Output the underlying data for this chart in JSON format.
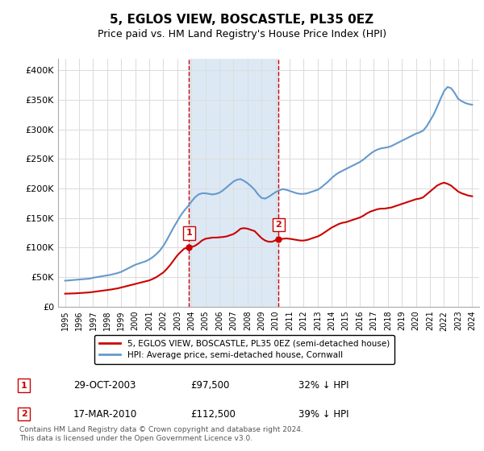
{
  "title": "5, EGLOS VIEW, BOSCASTLE, PL35 0EZ",
  "subtitle": "Price paid vs. HM Land Registry's House Price Index (HPI)",
  "red_label": "5, EGLOS VIEW, BOSCASTLE, PL35 0EZ (semi-detached house)",
  "blue_label": "HPI: Average price, semi-detached house, Cornwall",
  "footer": "Contains HM Land Registry data © Crown copyright and database right 2024.\nThis data is licensed under the Open Government Licence v3.0.",
  "purchases": [
    {
      "num": 1,
      "date": "29-OCT-2003",
      "price": "£97,500",
      "pct": "32% ↓ HPI",
      "x": 2003.83
    },
    {
      "num": 2,
      "date": "17-MAR-2010",
      "price": "£112,500",
      "pct": "39% ↓ HPI",
      "x": 2010.21
    }
  ],
  "shade_color": "#dce9f5",
  "red_color": "#cc0000",
  "blue_color": "#6699cc",
  "vline_color": "#cc0000",
  "background_color": "#ffffff",
  "grid_color": "#dddddd",
  "ylim": [
    0,
    420000
  ],
  "xlim": [
    1994.5,
    2024.5
  ],
  "yticks": [
    0,
    50000,
    100000,
    150000,
    200000,
    250000,
    300000,
    350000,
    400000
  ],
  "ytick_labels": [
    "£0",
    "£50K",
    "£100K",
    "£150K",
    "£200K",
    "£250K",
    "£300K",
    "£350K",
    "£400K"
  ],
  "hpi_data": {
    "years": [
      1995.0,
      1995.25,
      1995.5,
      1995.75,
      1996.0,
      1996.25,
      1996.5,
      1996.75,
      1997.0,
      1997.25,
      1997.5,
      1997.75,
      1998.0,
      1998.25,
      1998.5,
      1998.75,
      1999.0,
      1999.25,
      1999.5,
      1999.75,
      2000.0,
      2000.25,
      2000.5,
      2000.75,
      2001.0,
      2001.25,
      2001.5,
      2001.75,
      2002.0,
      2002.25,
      2002.5,
      2002.75,
      2003.0,
      2003.25,
      2003.5,
      2003.75,
      2004.0,
      2004.25,
      2004.5,
      2004.75,
      2005.0,
      2005.25,
      2005.5,
      2005.75,
      2006.0,
      2006.25,
      2006.5,
      2006.75,
      2007.0,
      2007.25,
      2007.5,
      2007.75,
      2008.0,
      2008.25,
      2008.5,
      2008.75,
      2009.0,
      2009.25,
      2009.5,
      2009.75,
      2010.0,
      2010.25,
      2010.5,
      2010.75,
      2011.0,
      2011.25,
      2011.5,
      2011.75,
      2012.0,
      2012.25,
      2012.5,
      2012.75,
      2013.0,
      2013.25,
      2013.5,
      2013.75,
      2014.0,
      2014.25,
      2014.5,
      2014.75,
      2015.0,
      2015.25,
      2015.5,
      2015.75,
      2016.0,
      2016.25,
      2016.5,
      2016.75,
      2017.0,
      2017.25,
      2017.5,
      2017.75,
      2018.0,
      2018.25,
      2018.5,
      2018.75,
      2019.0,
      2019.25,
      2019.5,
      2019.75,
      2020.0,
      2020.25,
      2020.5,
      2020.75,
      2021.0,
      2021.25,
      2021.5,
      2021.75,
      2022.0,
      2022.25,
      2022.5,
      2022.75,
      2023.0,
      2023.25,
      2023.5,
      2023.75,
      2024.0
    ],
    "values": [
      44000,
      44500,
      45000,
      45500,
      46000,
      46500,
      47000,
      47500,
      49000,
      50000,
      51000,
      52000,
      53000,
      54000,
      55500,
      57000,
      59000,
      62000,
      65000,
      68000,
      71000,
      73000,
      75000,
      77000,
      80000,
      84000,
      89000,
      95000,
      103000,
      113000,
      124000,
      135000,
      145000,
      155000,
      163000,
      170000,
      178000,
      185000,
      190000,
      192000,
      192000,
      191000,
      190000,
      191000,
      193000,
      197000,
      202000,
      207000,
      212000,
      215000,
      216000,
      213000,
      209000,
      204000,
      198000,
      190000,
      184000,
      183000,
      186000,
      190000,
      194000,
      197000,
      199000,
      198000,
      196000,
      194000,
      192000,
      191000,
      191000,
      192000,
      194000,
      196000,
      198000,
      202000,
      207000,
      212000,
      218000,
      223000,
      227000,
      230000,
      233000,
      236000,
      239000,
      242000,
      245000,
      249000,
      254000,
      259000,
      263000,
      266000,
      268000,
      269000,
      270000,
      272000,
      275000,
      278000,
      281000,
      284000,
      287000,
      290000,
      293000,
      295000,
      298000,
      305000,
      315000,
      325000,
      338000,
      352000,
      365000,
      372000,
      370000,
      362000,
      352000,
      348000,
      345000,
      343000,
      342000
    ]
  },
  "red_data": {
    "years": [
      1995.0,
      1995.25,
      1995.5,
      1995.75,
      1996.0,
      1996.25,
      1996.5,
      1996.75,
      1997.0,
      1997.25,
      1997.5,
      1997.75,
      1998.0,
      1998.25,
      1998.5,
      1998.75,
      1999.0,
      1999.25,
      1999.5,
      1999.75,
      2000.0,
      2000.25,
      2000.5,
      2000.75,
      2001.0,
      2001.25,
      2001.5,
      2001.75,
      2002.0,
      2002.25,
      2002.5,
      2002.75,
      2003.0,
      2003.25,
      2003.5,
      2003.75,
      2004.0,
      2004.25,
      2004.5,
      2004.75,
      2005.0,
      2005.25,
      2005.5,
      2005.75,
      2006.0,
      2006.25,
      2006.5,
      2006.75,
      2007.0,
      2007.25,
      2007.5,
      2007.75,
      2008.0,
      2008.25,
      2008.5,
      2008.75,
      2009.0,
      2009.25,
      2009.5,
      2009.75,
      2010.0,
      2010.25,
      2010.5,
      2010.75,
      2011.0,
      2011.25,
      2011.5,
      2011.75,
      2012.0,
      2012.25,
      2012.5,
      2012.75,
      2013.0,
      2013.25,
      2013.5,
      2013.75,
      2014.0,
      2014.25,
      2014.5,
      2014.75,
      2015.0,
      2015.25,
      2015.5,
      2015.75,
      2016.0,
      2016.25,
      2016.5,
      2016.75,
      2017.0,
      2017.25,
      2017.5,
      2017.75,
      2018.0,
      2018.25,
      2018.5,
      2018.75,
      2019.0,
      2019.25,
      2019.5,
      2019.75,
      2020.0,
      2020.25,
      2020.5,
      2020.75,
      2021.0,
      2021.25,
      2021.5,
      2021.75,
      2022.0,
      2022.25,
      2022.5,
      2022.75,
      2023.0,
      2023.25,
      2023.5,
      2023.75,
      2024.0
    ],
    "values": [
      22000,
      22200,
      22400,
      22600,
      23000,
      23400,
      23800,
      24200,
      25000,
      25800,
      26600,
      27400,
      28200,
      29000,
      30000,
      31000,
      32500,
      34000,
      35500,
      37000,
      38500,
      40000,
      41500,
      43000,
      44500,
      47000,
      50000,
      54000,
      58000,
      64000,
      71000,
      79000,
      87000,
      93000,
      98500,
      100000,
      101000,
      103000,
      107000,
      112000,
      115000,
      116000,
      117000,
      117000,
      117500,
      118000,
      119000,
      121000,
      123000,
      127000,
      132000,
      133000,
      132000,
      130000,
      128000,
      122000,
      116000,
      112000,
      110000,
      110000,
      112500,
      114000,
      115000,
      115500,
      115000,
      114000,
      113000,
      112000,
      112000,
      113000,
      115000,
      117000,
      119000,
      122000,
      126000,
      130000,
      134000,
      137000,
      140000,
      142000,
      143000,
      145000,
      147000,
      149000,
      151000,
      154000,
      158000,
      161000,
      163000,
      165000,
      166000,
      166000,
      167000,
      168000,
      170000,
      172000,
      174000,
      176000,
      178000,
      180000,
      182000,
      183000,
      185000,
      190000,
      195000,
      200000,
      205000,
      208000,
      210000,
      208000,
      205000,
      200000,
      195000,
      192000,
      190000,
      188000,
      187000
    ]
  }
}
